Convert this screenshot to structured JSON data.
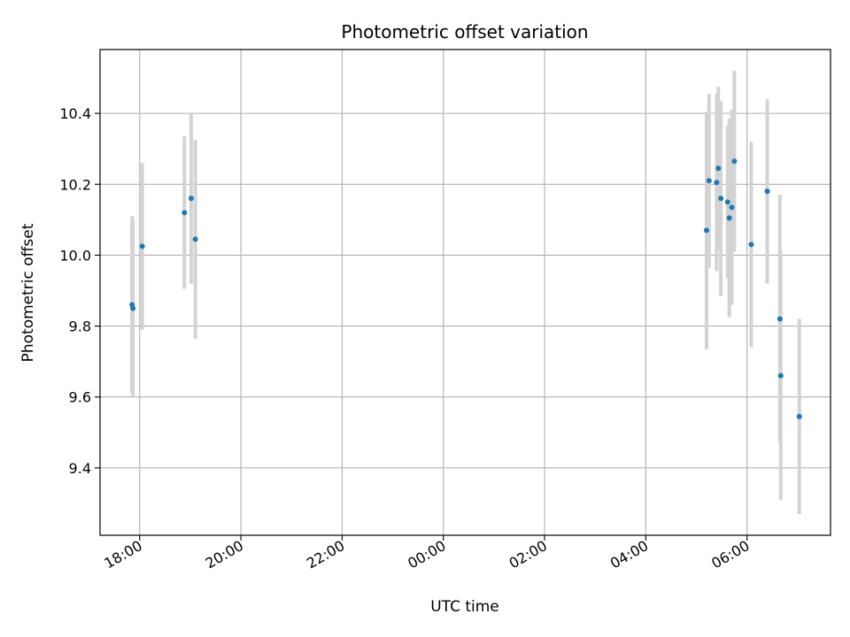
{
  "chart_data": {
    "type": "scatter",
    "title": "Photometric offset variation",
    "xlabel": "UTC time",
    "ylabel": "Photometric offset",
    "x_is_time": true,
    "x_tick_labels": [
      "18:00",
      "20:00",
      "22:00",
      "00:00",
      "02:00",
      "04:00",
      "06:00"
    ],
    "xlim": [
      "17:13",
      "07:39"
    ],
    "ylim": [
      9.21,
      10.58
    ],
    "y_ticks": [
      9.4,
      9.6,
      9.8,
      10.0,
      10.2,
      10.4
    ],
    "y_tick_labels": [
      "9.4",
      "9.6",
      "9.8",
      "10.0",
      "10.2",
      "10.4"
    ],
    "grid": true,
    "colors": {
      "points": "#1f77b4",
      "errorbars": "#d3d3d3",
      "grid": "#b0b0b0"
    },
    "points": [
      {
        "x": "17:51",
        "y": 9.86,
        "yerr": 0.25
      },
      {
        "x": "17:52",
        "y": 9.85,
        "yerr": 0.25
      },
      {
        "x": "18:03",
        "y": 10.025,
        "yerr": 0.235
      },
      {
        "x": "18:53",
        "y": 10.12,
        "yerr": 0.215
      },
      {
        "x": "19:01",
        "y": 10.16,
        "yerr": 0.24
      },
      {
        "x": "19:06",
        "y": 10.045,
        "yerr": 0.28
      },
      {
        "x": "05:12",
        "y": 10.07,
        "yerr": 0.335
      },
      {
        "x": "05:15",
        "y": 10.21,
        "yerr": 0.245
      },
      {
        "x": "05:24",
        "y": 10.205,
        "yerr": 0.25
      },
      {
        "x": "05:26",
        "y": 10.245,
        "yerr": 0.23
      },
      {
        "x": "05:29",
        "y": 10.16,
        "yerr": 0.275
      },
      {
        "x": "05:37",
        "y": 10.15,
        "yerr": 0.215
      },
      {
        "x": "05:39",
        "y": 10.105,
        "yerr": 0.28
      },
      {
        "x": "05:42",
        "y": 10.135,
        "yerr": 0.275
      },
      {
        "x": "05:45",
        "y": 10.265,
        "yerr": 0.255
      },
      {
        "x": "06:05",
        "y": 10.03,
        "yerr": 0.29
      },
      {
        "x": "06:24",
        "y": 10.18,
        "yerr": 0.26
      },
      {
        "x": "06:39",
        "y": 9.82,
        "yerr": 0.35
      },
      {
        "x": "06:40",
        "y": 9.66,
        "yerr": 0.35
      },
      {
        "x": "07:02",
        "y": 9.545,
        "yerr": 0.275
      }
    ]
  }
}
